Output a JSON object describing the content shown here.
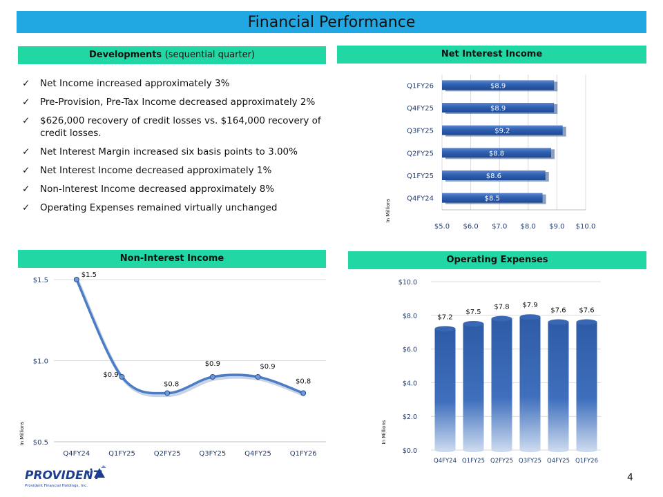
{
  "page_title": "Financial Performance",
  "page_number": "4",
  "developments": {
    "heading": "Developments",
    "heading_sub": "(sequential quarter)",
    "bullets": [
      "Net Income increased approximately 3%",
      "Pre-Provision, Pre-Tax Income decreased approximately 2%",
      "$626,000 recovery of credit losses vs. $164,000 recovery of credit losses.",
      "Net Interest Margin increased six basis points to 3.00%",
      "Net Interest Income decreased approximately 1%",
      "Non-Interest Income decreased approximately 8%",
      "Operating Expenses remained virtually unchanged"
    ]
  },
  "logo": {
    "name": "PROVIDENT",
    "tagline": "Provident Financial Holdings, Inc."
  },
  "colors": {
    "banner": "#21a8e3",
    "section_head": "#21d8a4",
    "bar": "#2f63ad",
    "line": "#4a7dc4"
  },
  "chart_data": [
    {
      "id": "net_interest_income",
      "type": "bar",
      "orientation": "horizontal",
      "title": "Net Interest Income",
      "ylabel": "In Millions",
      "categories": [
        "Q4FY24",
        "Q1FY25",
        "Q2FY25",
        "Q3FY25",
        "Q4FY25",
        "Q1FY26"
      ],
      "values": [
        8.5,
        8.6,
        8.8,
        9.2,
        8.9,
        8.9
      ],
      "data_labels": [
        "$8.5",
        "$8.6",
        "$8.8",
        "$9.2",
        "$8.9",
        "$8.9"
      ],
      "xlim": [
        5.0,
        10.0
      ],
      "ticks": [
        "$5.0",
        "$6.0",
        "$7.0",
        "$8.0",
        "$9.0",
        "$10.0"
      ]
    },
    {
      "id": "non_interest_income",
      "type": "line",
      "title": "Non-Interest Income",
      "ylabel": "In Millions",
      "categories": [
        "Q4FY24",
        "Q1FY25",
        "Q2FY25",
        "Q3FY25",
        "Q4FY25",
        "Q1FY26"
      ],
      "values": [
        1.5,
        0.9,
        0.8,
        0.9,
        0.9,
        0.8
      ],
      "data_labels": [
        "$1.5",
        "$0.9",
        "$0.8",
        "$0.9",
        "$0.9",
        "$0.8"
      ],
      "ylim": [
        0.5,
        1.5
      ],
      "ticks": [
        "$0.5",
        "$1.0",
        "$1.5"
      ]
    },
    {
      "id": "operating_expenses",
      "type": "bar",
      "title": "Operating Expenses",
      "ylabel": "In Millions",
      "categories": [
        "Q4FY24",
        "Q1FY25",
        "Q2FY25",
        "Q3FY25",
        "Q4FY25",
        "Q1FY26"
      ],
      "values": [
        7.2,
        7.5,
        7.8,
        7.9,
        7.6,
        7.6
      ],
      "data_labels": [
        "$7.2",
        "$7.5",
        "$7.8",
        "$7.9",
        "$7.6",
        "$7.6"
      ],
      "ylim": [
        0.0,
        10.0
      ],
      "ticks": [
        "$0.0",
        "$2.0",
        "$4.0",
        "$6.0",
        "$8.0",
        "$10.0"
      ]
    }
  ]
}
